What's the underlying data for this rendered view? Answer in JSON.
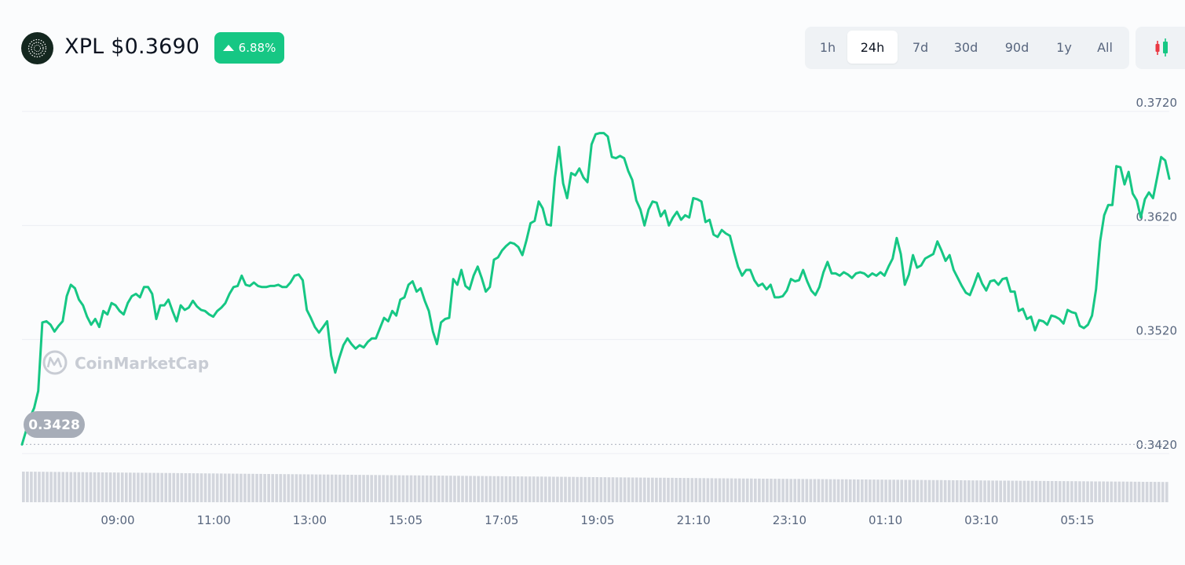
{
  "header": {
    "coin_label": "XPL $0.3690",
    "change": "6.88%",
    "change_color": "#16c784"
  },
  "range_options": [
    "1h",
    "24h",
    "7d",
    "30d",
    "90d",
    "1y",
    "All"
  ],
  "active_range": "24h",
  "candle_icon": "candlestick-icon",
  "watermark": "CoinMarketCap",
  "open_price_label": "0.3428",
  "colors": {
    "line": "#16c784",
    "grid": "#eceef2",
    "volume": "#d3d6dd"
  },
  "chart_data": {
    "type": "line",
    "title": "XPL $0.3690",
    "x_ticks": [
      "09:00",
      "11:00",
      "13:00",
      "15:05",
      "17:05",
      "19:05",
      "21:10",
      "23:10",
      "01:10",
      "03:10",
      "05:15"
    ],
    "y_ticks": [
      "0.3720",
      "0.3620",
      "0.3520",
      "0.3420"
    ],
    "ylim": [
      0.342,
      0.372
    ],
    "reference_line": 0.3428,
    "grid": true,
    "series": [
      {
        "values": [
          0.3428,
          0.344,
          0.3452,
          0.346,
          0.3475,
          0.3535,
          0.3536,
          0.3533,
          0.3527,
          0.3532,
          0.3536,
          0.3558,
          0.3568,
          0.3565,
          0.3555,
          0.355,
          0.354,
          0.3533,
          0.3538,
          0.3531,
          0.3545,
          0.3542,
          0.3552,
          0.355,
          0.3545,
          0.3542,
          0.3552,
          0.3558,
          0.356,
          0.3557,
          0.3566,
          0.3566,
          0.356,
          0.3538,
          0.355,
          0.355,
          0.3555,
          0.3545,
          0.3536,
          0.355,
          0.3546,
          0.3548,
          0.3554,
          0.3549,
          0.3546,
          0.3545,
          0.3542,
          0.354,
          0.3545,
          0.3548,
          0.3552,
          0.356,
          0.3566,
          0.3567,
          0.3576,
          0.3568,
          0.3567,
          0.357,
          0.3567,
          0.3566,
          0.3566,
          0.3567,
          0.3567,
          0.3568,
          0.3566,
          0.3566,
          0.357,
          0.3576,
          0.3577,
          0.3572,
          0.3546,
          0.3539,
          0.3531,
          0.3526,
          0.3531,
          0.3536,
          0.3506,
          0.3491,
          0.3504,
          0.3515,
          0.3521,
          0.3516,
          0.3512,
          0.3515,
          0.3513,
          0.3518,
          0.3521,
          0.3521,
          0.353,
          0.3539,
          0.3536,
          0.3545,
          0.3541,
          0.3555,
          0.3557,
          0.3568,
          0.3571,
          0.3562,
          0.3565,
          0.3554,
          0.3545,
          0.3527,
          0.3516,
          0.3535,
          0.3538,
          0.3539,
          0.3573,
          0.3568,
          0.3581,
          0.3567,
          0.3564,
          0.3576,
          0.3584,
          0.3574,
          0.3562,
          0.3566,
          0.359,
          0.3592,
          0.3598,
          0.3602,
          0.3605,
          0.3604,
          0.3601,
          0.3594,
          0.3607,
          0.3622,
          0.3624,
          0.3641,
          0.3635,
          0.3621,
          0.362,
          0.3662,
          0.3689,
          0.3657,
          0.3644,
          0.3666,
          0.3664,
          0.367,
          0.3662,
          0.3658,
          0.3691,
          0.37,
          0.3701,
          0.3701,
          0.3698,
          0.368,
          0.3679,
          0.3681,
          0.3679,
          0.3668,
          0.366,
          0.3642,
          0.3634,
          0.362,
          0.3634,
          0.3641,
          0.364,
          0.3628,
          0.3633,
          0.362,
          0.3627,
          0.3632,
          0.3625,
          0.3629,
          0.3627,
          0.3644,
          0.3643,
          0.3641,
          0.3623,
          0.3625,
          0.3612,
          0.361,
          0.3616,
          0.3613,
          0.3611,
          0.3597,
          0.3584,
          0.3576,
          0.3581,
          0.3581,
          0.3572,
          0.3567,
          0.3569,
          0.3564,
          0.3568,
          0.3557,
          0.3557,
          0.3558,
          0.3563,
          0.3573,
          0.3571,
          0.3572,
          0.3581,
          0.3571,
          0.3563,
          0.3559,
          0.3566,
          0.3579,
          0.3588,
          0.3578,
          0.3578,
          0.3576,
          0.3579,
          0.3577,
          0.3574,
          0.3578,
          0.3579,
          0.3578,
          0.3575,
          0.3578,
          0.3576,
          0.3579,
          0.3576,
          0.3584,
          0.3591,
          0.3609,
          0.3595,
          0.3568,
          0.3577,
          0.3594,
          0.3583,
          0.3585,
          0.3591,
          0.3593,
          0.3595,
          0.3606,
          0.3598,
          0.3589,
          0.3594,
          0.3581,
          0.3574,
          0.3567,
          0.3561,
          0.3559,
          0.3568,
          0.3578,
          0.3569,
          0.3563,
          0.3571,
          0.3572,
          0.3568,
          0.3573,
          0.3574,
          0.3562,
          0.3562,
          0.3545,
          0.3547,
          0.3538,
          0.354,
          0.3528,
          0.3537,
          0.3536,
          0.3533,
          0.3541,
          0.354,
          0.3538,
          0.3534,
          0.3546,
          0.3544,
          0.3543,
          0.3532,
          0.353,
          0.3533,
          0.3541,
          0.3564,
          0.3606,
          0.3629,
          0.3638,
          0.3638,
          0.3672,
          0.3671,
          0.3656,
          0.3667,
          0.3648,
          0.3642,
          0.3627,
          0.3643,
          0.3649,
          0.3644,
          0.3662,
          0.368,
          0.3677,
          0.3661
        ]
      }
    ],
    "volume_label": "volume"
  }
}
